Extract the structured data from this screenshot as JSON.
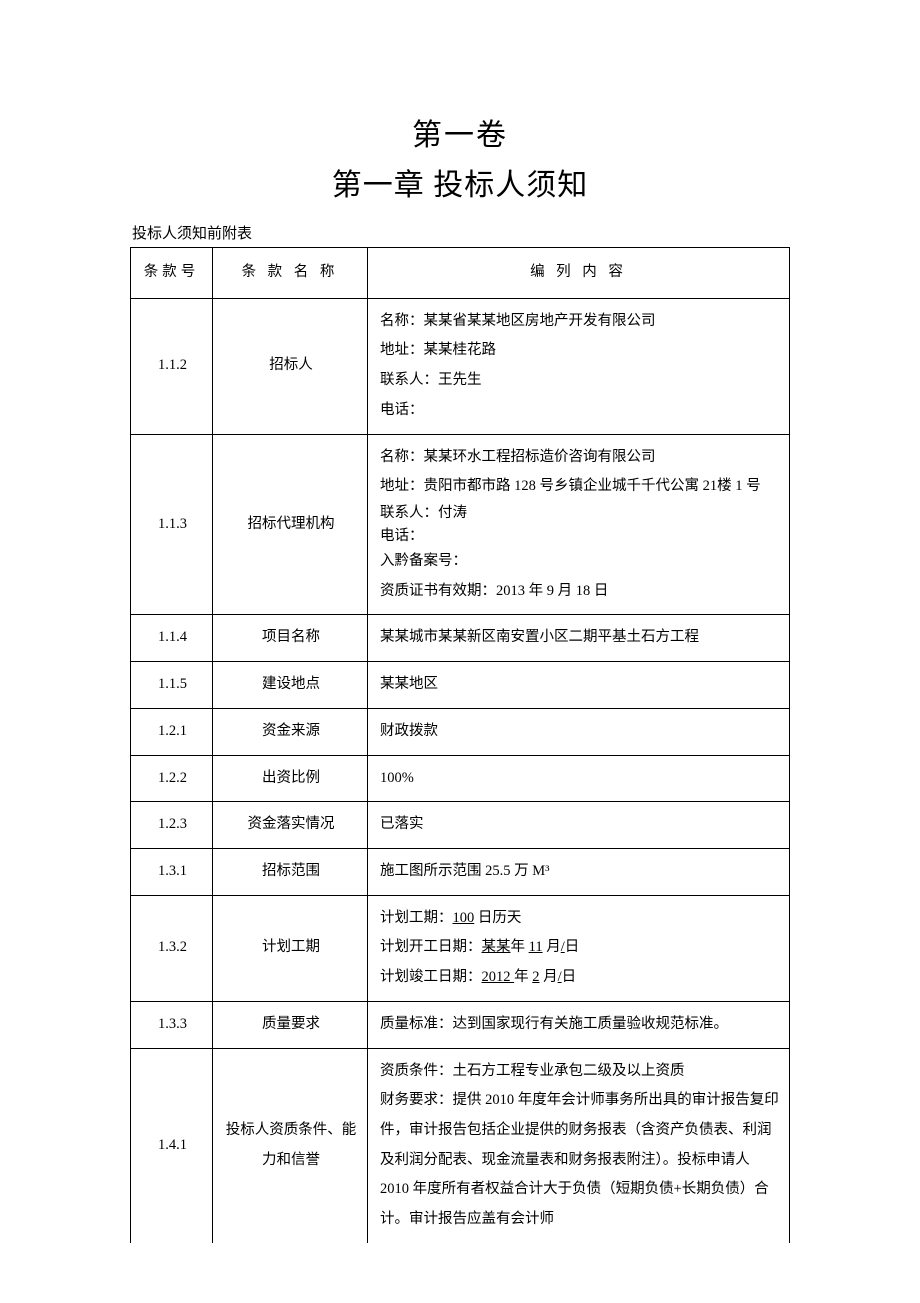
{
  "volume_title": "第一卷",
  "chapter_title": "第一章 投标人须知",
  "table_caption": "投标人须知前附表",
  "header": {
    "c1": "条款号",
    "c2": "条 款 名 称",
    "c3": "编 列 内 容"
  },
  "rows": {
    "r1": {
      "id": "1.1.2",
      "name": "招标人",
      "lines": {
        "l1": "名称：某某省某某地区房地产开发有限公司",
        "l2": "地址：某某桂花路",
        "l3": "联系人：王先生",
        "l4": "电话："
      }
    },
    "r2": {
      "id": "1.1.3",
      "name": "招标代理机构",
      "lines": {
        "l1": "名称：某某环水工程招标造价咨询有限公司",
        "l2": "地址：贵阳市都市路 128 号乡镇企业城千千代公寓 21楼 1 号",
        "l3": "联系人：付涛",
        "l4": "电话：",
        "l5": "入黔备案号：",
        "l6": "资质证书有效期：2013 年 9 月 18 日"
      }
    },
    "r3": {
      "id": "1.1.4",
      "name": "项目名称",
      "content": "某某城市某某新区南安置小区二期平基土石方工程"
    },
    "r4": {
      "id": "1.1.5",
      "name": "建设地点",
      "content": "某某地区"
    },
    "r5": {
      "id": "1.2.1",
      "name": "资金来源",
      "content": "财政拨款"
    },
    "r6": {
      "id": "1.2.2",
      "name": "出资比例",
      "content": "100%"
    },
    "r7": {
      "id": "1.2.3",
      "name": "资金落实情况",
      "content": "已落实"
    },
    "r8": {
      "id": "1.3.1",
      "name": "招标范围",
      "content": "施工图所示范围 25.5 万 M³"
    },
    "r9": {
      "id": "1.3.2",
      "name": "计划工期",
      "line1_prefix": "计划工期：",
      "line1_u": "100",
      "line1_suffix": " 日历天",
      "line2_prefix": "计划开工日期：",
      "line2_u1": "某某",
      "line2_mid1": "年 ",
      "line2_u2": "11",
      "line2_mid2": " 月",
      "line2_u3": "/",
      "line2_suffix": "日",
      "line3_prefix": "计划竣工日期：",
      "line3_u1": "2012 ",
      "line3_mid1": "年 ",
      "line3_u2": "2",
      "line3_mid2": " 月",
      "line3_u3": "/",
      "line3_suffix": "日"
    },
    "r10": {
      "id": "1.3.3",
      "name": "质量要求",
      "content": "质量标准：达到国家现行有关施工质量验收规范标准。"
    },
    "r11": {
      "id": "1.4.1",
      "name": "投标人资质条件、能力和信誉",
      "content": "资质条件：土石方工程专业承包二级及以上资质\n财务要求：提供 2010 年度年会计师事务所出具的审计报告复印件，审计报告包括企业提供的财务报表（含资产负债表、利润及利润分配表、现金流量表和财务报表附注）。投标申请人 2010 年度所有者权益合计大于负债（短期负债+长期负债）合计。审计报告应盖有会计师"
    }
  }
}
